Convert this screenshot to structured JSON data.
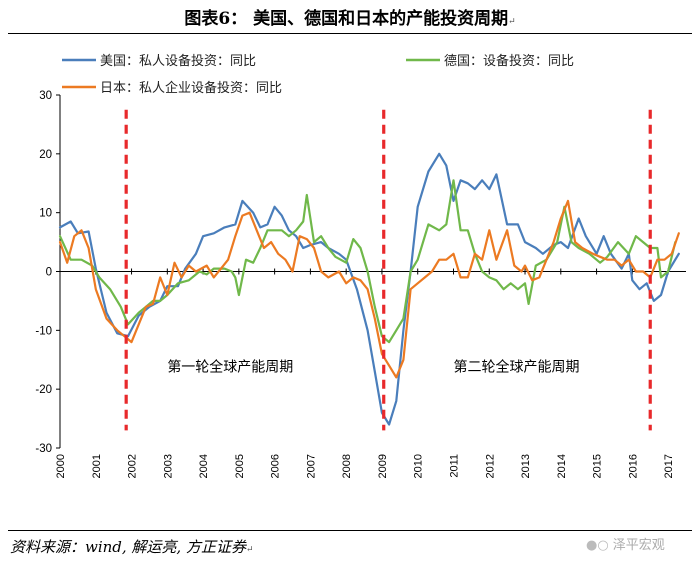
{
  "title": "图表6：  美国、德国和日本的产能投资周期",
  "title_mark": "↵",
  "source": "资料来源：wind, 解运亮, 方正证券",
  "source_mark": "↵",
  "watermark": "泽平宏观",
  "watermark_icon": "wechat-icon",
  "chart_data": {
    "type": "line",
    "title": "美国、德国和日本的产能投资周期",
    "xlabel": "",
    "ylabel": "",
    "xlim": [
      2000,
      2017.5
    ],
    "ylim": [
      -30,
      30
    ],
    "yticks": [
      -30,
      -20,
      -10,
      0,
      10,
      20,
      30
    ],
    "xticks": [
      2000,
      2001,
      2002,
      2003,
      2004,
      2005,
      2006,
      2007,
      2008,
      2009,
      2010,
      2011,
      2012,
      2013,
      2014,
      2015,
      2016,
      2017
    ],
    "zero_line": true,
    "legend_position": "top",
    "series": [
      {
        "name": "美国：私人设备投资：同比",
        "color": "#4a7ebb",
        "points": [
          [
            2000.0,
            7.5
          ],
          [
            2000.3,
            8.5
          ],
          [
            2000.5,
            6.5
          ],
          [
            2000.8,
            6.8
          ],
          [
            2001.0,
            0.5
          ],
          [
            2001.3,
            -7
          ],
          [
            2001.6,
            -10.5
          ],
          [
            2001.9,
            -11
          ],
          [
            2002.2,
            -7.5
          ],
          [
            2002.5,
            -6
          ],
          [
            2002.8,
            -5
          ],
          [
            2003.0,
            -2.5
          ],
          [
            2003.3,
            -2.5
          ],
          [
            2003.5,
            0.5
          ],
          [
            2003.8,
            3
          ],
          [
            2004.0,
            6
          ],
          [
            2004.3,
            6.5
          ],
          [
            2004.6,
            7.5
          ],
          [
            2004.9,
            8
          ],
          [
            2005.1,
            12
          ],
          [
            2005.4,
            10
          ],
          [
            2005.6,
            7.5
          ],
          [
            2005.8,
            8
          ],
          [
            2006.0,
            11
          ],
          [
            2006.2,
            9.5
          ],
          [
            2006.4,
            7
          ],
          [
            2006.6,
            6
          ],
          [
            2006.8,
            4
          ],
          [
            2007.0,
            4.5
          ],
          [
            2007.3,
            5
          ],
          [
            2007.5,
            4
          ],
          [
            2007.8,
            3
          ],
          [
            2008.0,
            2
          ],
          [
            2008.3,
            -3
          ],
          [
            2008.6,
            -10
          ],
          [
            2008.8,
            -17
          ],
          [
            2009.0,
            -24
          ],
          [
            2009.2,
            -26
          ],
          [
            2009.4,
            -22
          ],
          [
            2009.6,
            -10
          ],
          [
            2009.8,
            0
          ],
          [
            2010.0,
            11
          ],
          [
            2010.3,
            17
          ],
          [
            2010.6,
            20
          ],
          [
            2010.8,
            18
          ],
          [
            2011.0,
            12
          ],
          [
            2011.2,
            15.5
          ],
          [
            2011.4,
            15
          ],
          [
            2011.6,
            14
          ],
          [
            2011.8,
            15.5
          ],
          [
            2012.0,
            14
          ],
          [
            2012.2,
            16.5
          ],
          [
            2012.5,
            8
          ],
          [
            2012.8,
            8
          ],
          [
            2013.0,
            5
          ],
          [
            2013.3,
            4
          ],
          [
            2013.5,
            3
          ],
          [
            2013.8,
            4.5
          ],
          [
            2014.0,
            5
          ],
          [
            2014.2,
            4
          ],
          [
            2014.5,
            9
          ],
          [
            2014.7,
            6
          ],
          [
            2015.0,
            3
          ],
          [
            2015.2,
            6
          ],
          [
            2015.4,
            3
          ],
          [
            2015.7,
            0.5
          ],
          [
            2015.9,
            3
          ],
          [
            2016.0,
            -1.5
          ],
          [
            2016.2,
            -3
          ],
          [
            2016.4,
            -2
          ],
          [
            2016.6,
            -5
          ],
          [
            2016.8,
            -4
          ],
          [
            2017.0,
            0
          ],
          [
            2017.3,
            3
          ]
        ]
      },
      {
        "name": "德国：设备投资：同比",
        "color": "#70b84a",
        "points": [
          [
            2000.0,
            6
          ],
          [
            2000.3,
            2
          ],
          [
            2000.6,
            2
          ],
          [
            2000.9,
            1
          ],
          [
            2001.1,
            -1
          ],
          [
            2001.4,
            -3
          ],
          [
            2001.7,
            -6
          ],
          [
            2001.9,
            -9
          ],
          [
            2002.2,
            -7
          ],
          [
            2002.4,
            -6
          ],
          [
            2002.6,
            -5
          ],
          [
            2002.8,
            -5
          ],
          [
            2003.0,
            -4
          ],
          [
            2003.3,
            -2
          ],
          [
            2003.6,
            -1.5
          ],
          [
            2003.9,
            0
          ],
          [
            2004.1,
            -0.5
          ],
          [
            2004.3,
            0.5
          ],
          [
            2004.6,
            0.5
          ],
          [
            2004.8,
            0
          ],
          [
            2004.9,
            -1
          ],
          [
            2005.0,
            -4
          ],
          [
            2005.2,
            2
          ],
          [
            2005.4,
            1.5
          ],
          [
            2005.6,
            4
          ],
          [
            2005.8,
            7
          ],
          [
            2006.0,
            7
          ],
          [
            2006.2,
            7
          ],
          [
            2006.4,
            6
          ],
          [
            2006.6,
            7
          ],
          [
            2006.8,
            8.5
          ],
          [
            2006.9,
            13
          ],
          [
            2007.1,
            5
          ],
          [
            2007.3,
            6
          ],
          [
            2007.5,
            4
          ],
          [
            2007.7,
            2.5
          ],
          [
            2008.0,
            1.5
          ],
          [
            2008.2,
            5.5
          ],
          [
            2008.4,
            4
          ],
          [
            2008.6,
            0
          ],
          [
            2008.8,
            -6
          ],
          [
            2009.0,
            -11
          ],
          [
            2009.2,
            -12
          ],
          [
            2009.4,
            -10
          ],
          [
            2009.6,
            -8
          ],
          [
            2009.8,
            0
          ],
          [
            2010.0,
            2
          ],
          [
            2010.3,
            8
          ],
          [
            2010.6,
            7
          ],
          [
            2010.8,
            8
          ],
          [
            2011.0,
            15.5
          ],
          [
            2011.2,
            7
          ],
          [
            2011.4,
            7
          ],
          [
            2011.6,
            3
          ],
          [
            2011.8,
            0
          ],
          [
            2012.0,
            -1
          ],
          [
            2012.2,
            -1.5
          ],
          [
            2012.4,
            -3
          ],
          [
            2012.6,
            -2
          ],
          [
            2012.8,
            -3
          ],
          [
            2013.0,
            -2
          ],
          [
            2013.1,
            -5.5
          ],
          [
            2013.3,
            1
          ],
          [
            2013.6,
            2
          ],
          [
            2013.9,
            5
          ],
          [
            2014.1,
            11
          ],
          [
            2014.3,
            5
          ],
          [
            2014.5,
            4
          ],
          [
            2014.8,
            3
          ],
          [
            2015.1,
            1.5
          ],
          [
            2015.3,
            2.5
          ],
          [
            2015.6,
            5
          ],
          [
            2015.9,
            3
          ],
          [
            2016.1,
            6
          ],
          [
            2016.3,
            5
          ],
          [
            2016.5,
            4
          ],
          [
            2016.7,
            4
          ],
          [
            2016.8,
            -1
          ],
          [
            2017.0,
            0
          ],
          [
            2017.2,
            5
          ]
        ]
      },
      {
        "name": "日本：私人企业设备投资：同比",
        "color": "#ec7a22",
        "points": [
          [
            2000.0,
            5
          ],
          [
            2000.2,
            1.5
          ],
          [
            2000.4,
            6
          ],
          [
            2000.6,
            7
          ],
          [
            2000.8,
            4
          ],
          [
            2001.0,
            -3
          ],
          [
            2001.3,
            -8
          ],
          [
            2001.6,
            -10
          ],
          [
            2001.8,
            -11
          ],
          [
            2002.0,
            -12
          ],
          [
            2002.2,
            -9
          ],
          [
            2002.4,
            -6
          ],
          [
            2002.6,
            -5.5
          ],
          [
            2002.8,
            -1
          ],
          [
            2003.0,
            -4
          ],
          [
            2003.2,
            1.5
          ],
          [
            2003.4,
            -1
          ],
          [
            2003.6,
            1
          ],
          [
            2003.8,
            0
          ],
          [
            2004.1,
            1
          ],
          [
            2004.3,
            -1
          ],
          [
            2004.5,
            0.5
          ],
          [
            2004.7,
            2
          ],
          [
            2004.9,
            6
          ],
          [
            2005.1,
            9.5
          ],
          [
            2005.3,
            10
          ],
          [
            2005.5,
            7
          ],
          [
            2005.7,
            4
          ],
          [
            2005.9,
            5
          ],
          [
            2006.1,
            3
          ],
          [
            2006.3,
            2
          ],
          [
            2006.5,
            0
          ],
          [
            2006.7,
            6
          ],
          [
            2006.9,
            5.5
          ],
          [
            2007.1,
            4
          ],
          [
            2007.3,
            0
          ],
          [
            2007.5,
            -1
          ],
          [
            2007.8,
            0
          ],
          [
            2008.0,
            -2
          ],
          [
            2008.2,
            -1
          ],
          [
            2008.4,
            -1.5
          ],
          [
            2008.6,
            -3
          ],
          [
            2008.8,
            -8
          ],
          [
            2009.0,
            -14
          ],
          [
            2009.2,
            -16
          ],
          [
            2009.4,
            -18
          ],
          [
            2009.6,
            -15
          ],
          [
            2009.8,
            -3
          ],
          [
            2010.0,
            -2
          ],
          [
            2010.2,
            -1
          ],
          [
            2010.4,
            0
          ],
          [
            2010.6,
            2
          ],
          [
            2010.8,
            2
          ],
          [
            2011.0,
            3
          ],
          [
            2011.2,
            -1
          ],
          [
            2011.4,
            -1
          ],
          [
            2011.6,
            3
          ],
          [
            2011.8,
            2
          ],
          [
            2012.0,
            7
          ],
          [
            2012.2,
            2
          ],
          [
            2012.5,
            7
          ],
          [
            2012.7,
            1
          ],
          [
            2012.9,
            0
          ],
          [
            2013.0,
            1
          ],
          [
            2013.2,
            -1.5
          ],
          [
            2013.4,
            -1
          ],
          [
            2013.6,
            2
          ],
          [
            2013.8,
            5
          ],
          [
            2014.0,
            9
          ],
          [
            2014.2,
            12
          ],
          [
            2014.4,
            5
          ],
          [
            2014.6,
            4
          ],
          [
            2014.9,
            3
          ],
          [
            2015.1,
            2.5
          ],
          [
            2015.3,
            2
          ],
          [
            2015.5,
            2
          ],
          [
            2015.7,
            1
          ],
          [
            2015.9,
            2
          ],
          [
            2016.1,
            0
          ],
          [
            2016.3,
            0
          ],
          [
            2016.5,
            -1
          ],
          [
            2016.7,
            2
          ],
          [
            2016.9,
            2
          ],
          [
            2017.1,
            3
          ],
          [
            2017.3,
            6.5
          ]
        ]
      }
    ],
    "cycle_markers": [
      2001.85,
      2009.05,
      2016.5
    ],
    "cycle_marker_color": "#e8292b",
    "annotations": [
      {
        "text": "第一轮全球产能周期",
        "x": 2003.0,
        "y": -17
      },
      {
        "text": "第二轮全球产能周期",
        "x": 2011.0,
        "y": -17
      }
    ]
  }
}
